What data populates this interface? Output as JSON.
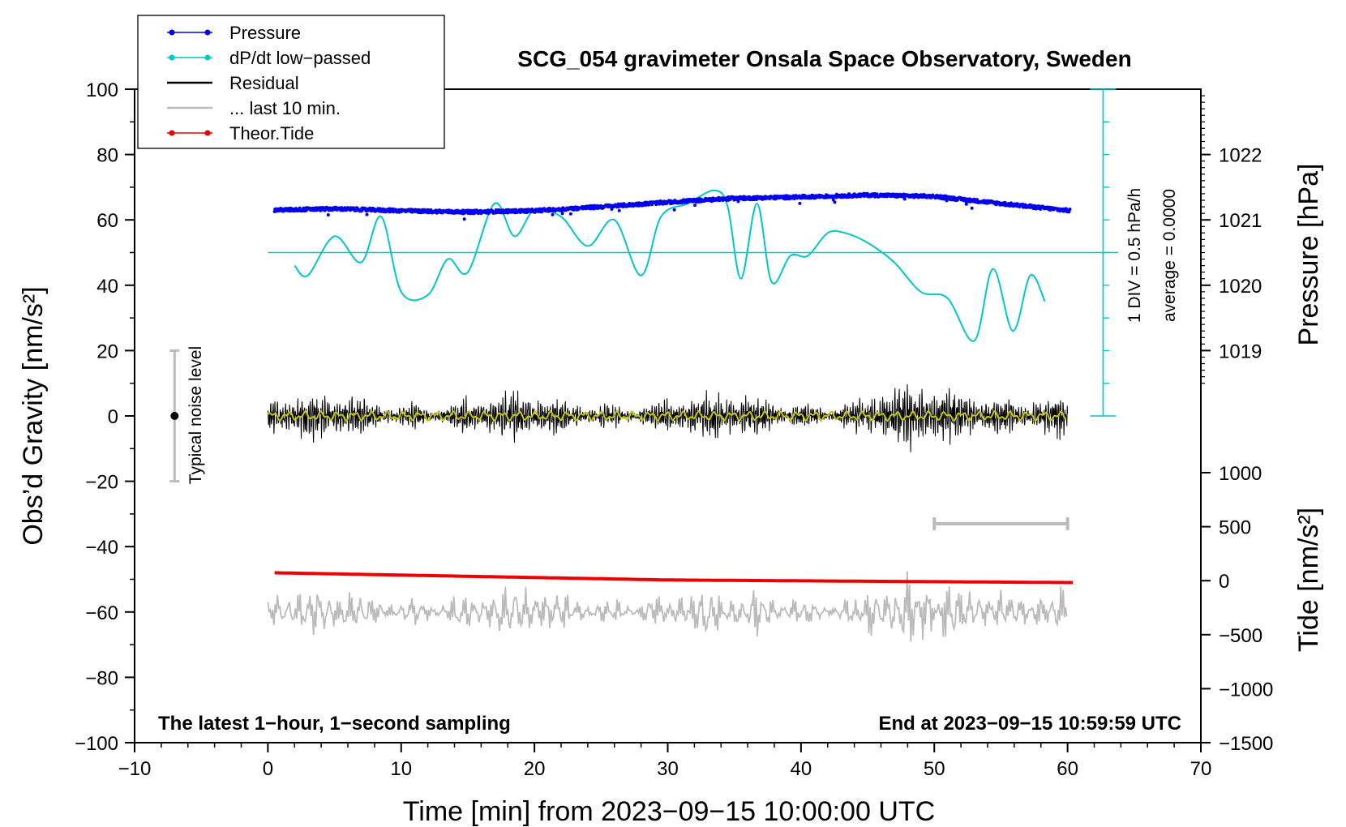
{
  "chart_data": {
    "type": "line",
    "title": "SCG_054 gravimeter Onsala Space Observatory, Sweden",
    "xlabel": "Time [min] from 2023−09−15 10:00:00 UTC",
    "ylabel_left": "Obs’d Gravity [nm/s²]",
    "ylabel_right_pressure": "Pressure [hPa]",
    "ylabel_right_tide": "Tide [nm/s²]",
    "xlim": [
      -10,
      70
    ],
    "ylim": [
      -100,
      100
    ],
    "x_ticks": [
      -10,
      0,
      10,
      20,
      30,
      40,
      50,
      60,
      70
    ],
    "x_tick_labels": [
      "−10",
      "0",
      "10",
      "20",
      "30",
      "40",
      "50",
      "60",
      "70"
    ],
    "y_ticks": [
      -100,
      -80,
      -60,
      -40,
      -20,
      0,
      20,
      40,
      60,
      80,
      100
    ],
    "y_tick_labels": [
      "−100",
      "−80",
      "−60",
      "−40",
      "−20",
      "0",
      "20",
      "40",
      "60",
      "80",
      "100"
    ],
    "pressure_axis": {
      "range_hPa": [
        1018.5,
        1023.0
      ],
      "ticks": [
        1019,
        1020,
        1021,
        1022
      ],
      "tick_labels": [
        "1019",
        "1020",
        "1021",
        "1022"
      ]
    },
    "tide_axis": {
      "range": [
        -1500,
        1000
      ],
      "ticks": [
        -1500,
        -1000,
        -500,
        0,
        500,
        1000
      ],
      "tick_labels": [
        "−1500",
        "−1000",
        "−500",
        "0",
        "500",
        "1000"
      ]
    },
    "dpdt_scale": {
      "label_div": "1 DIV = 0.5 hPa/h",
      "label_avg": "average = 0.0000",
      "x_min": 62.3,
      "baseline_gravity": 50,
      "range_gravity": [
        0,
        100
      ]
    },
    "legend": {
      "position": "top-left",
      "entries": [
        {
          "label": "Pressure",
          "color": "#0000ee",
          "marker": true
        },
        {
          "label": "dP/dt low−passed",
          "color": "#00c8c8",
          "marker": true
        },
        {
          "label": "Residual",
          "color": "#000000",
          "marker": false
        },
        {
          "label": "... last 10 min.",
          "color": "#bbbbbb",
          "marker": false
        },
        {
          "label": "Theor.Tide",
          "color": "#ee0000",
          "marker": true
        }
      ]
    },
    "noise_bar": {
      "label": "Typical noise level",
      "x": -7,
      "center": 0,
      "range": [
        -20,
        20
      ]
    },
    "last10_marker": {
      "x_range": [
        50,
        60
      ],
      "gravity": -33
    },
    "note_left": "The latest 1−hour, 1−second sampling",
    "note_right": "End at 2023−09−15 10:59:59 UTC",
    "series": [
      {
        "name": "Pressure",
        "color": "#0000ee",
        "unit": "hPa",
        "t": [
          0.5,
          5,
          10,
          15,
          20,
          25,
          30,
          35,
          40,
          45,
          50,
          55,
          60.2
        ],
        "values": [
          1021.15,
          1021.17,
          1021.14,
          1021.12,
          1021.14,
          1021.2,
          1021.27,
          1021.33,
          1021.35,
          1021.38,
          1021.36,
          1021.25,
          1021.14
        ]
      },
      {
        "name": "dP/dt low−passed",
        "color": "#00c8c8",
        "unit": "gravity-axis units",
        "t": [
          2,
          3,
          5,
          7,
          8.5,
          10,
          12,
          13.5,
          15,
          17,
          18.5,
          20,
          22,
          24,
          26,
          28,
          29.5,
          31.5,
          33.5,
          34.5,
          35.5,
          36.7,
          37.8,
          39.2,
          40.5,
          42,
          43.3,
          45,
          47,
          49,
          51,
          53,
          54.4,
          55.9,
          57.2,
          58.3
        ],
        "values": [
          46,
          43,
          55,
          47,
          61,
          38,
          37,
          48,
          44,
          65,
          55,
          63,
          61,
          52,
          60,
          43,
          61,
          65,
          69,
          64,
          42,
          65,
          41,
          49,
          49,
          56,
          56,
          53,
          47,
          38,
          36,
          23,
          45,
          26,
          43,
          35
        ]
      },
      {
        "name": "Residual",
        "color": "#000000",
        "unit": "nm/s²",
        "t_range": [
          0,
          60
        ],
        "mean": 0,
        "typical_amplitude": 7,
        "peak_min": -13,
        "peak_max": 18
      },
      {
        "name": "Residual smoothed",
        "color": "#c8c800",
        "unit": "nm/s²",
        "t_range": [
          0,
          60
        ],
        "mean": 0,
        "typical_amplitude": 1.5
      },
      {
        "name": "... last 10 min.",
        "color": "#bbbbbb",
        "unit": "nm/s² (offset)",
        "t_range": [
          0,
          60
        ],
        "mean": -60,
        "typical_amplitude": 7,
        "peak_min": -74,
        "peak_max": -44
      },
      {
        "name": "Theor.Tide",
        "color": "#ee0000",
        "unit": "nm/s²",
        "t": [
          0.5,
          30,
          60.5
        ],
        "values": [
          40,
          -15,
          -35
        ]
      }
    ]
  }
}
